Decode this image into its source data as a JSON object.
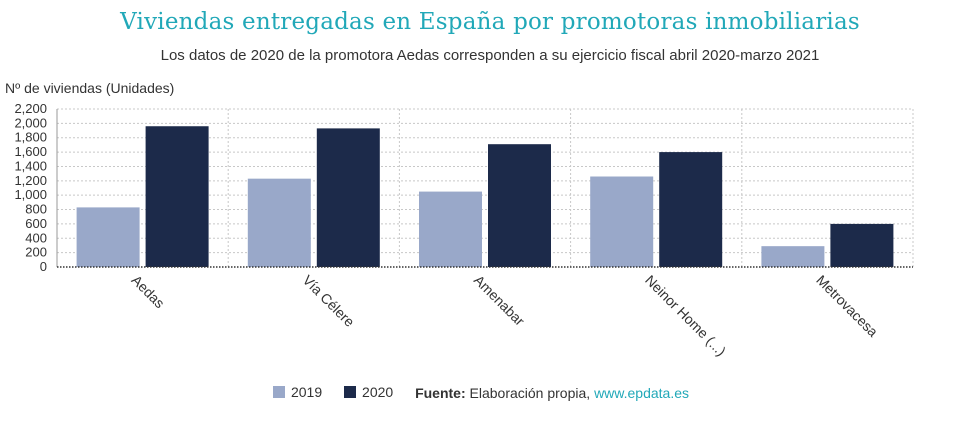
{
  "title": "Viviendas entregadas en España por promotoras inmobiliarias",
  "subtitle": "Los datos de 2020 de la promotora Aedas corresponden a su ejercicio fiscal abril 2020-marzo 2021",
  "source": {
    "label": "Fuente:",
    "text": "Elaboración propia,",
    "link": "www.epdata.es"
  },
  "colors": {
    "series_2019": "#99a8c9",
    "series_2020": "#1c2a4a",
    "title": "#21a8b8"
  },
  "chart_data": {
    "type": "bar",
    "categories": [
      "Aedas",
      "Vía Célere",
      "Amenabar",
      "Neinor Home (...)",
      "Metrovacesa"
    ],
    "series": [
      {
        "name": "2019",
        "values": [
          830,
          1230,
          1050,
          1260,
          290
        ]
      },
      {
        "name": "2020",
        "values": [
          1960,
          1930,
          1710,
          1600,
          600
        ]
      }
    ],
    "ylabel": "Nº de viviendas (Unidades)",
    "ylim": [
      0,
      2200
    ],
    "yticks": [
      "0",
      "200",
      "400",
      "600",
      "800",
      "1,000",
      "1,200",
      "1,400",
      "1,600",
      "1,800",
      "2,000",
      "2,200"
    ],
    "grid": true,
    "legend_position": "bottom"
  }
}
